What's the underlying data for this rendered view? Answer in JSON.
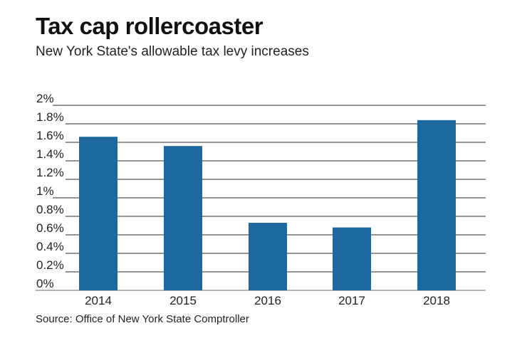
{
  "chart_data": {
    "type": "bar",
    "title": "Tax cap rollercoaster",
    "subtitle": "New York State's allowable tax levy increases",
    "source": "Source: Office of New York State Comptroller",
    "categories": [
      "2014",
      "2015",
      "2016",
      "2017",
      "2018"
    ],
    "values": [
      1.66,
      1.56,
      0.73,
      0.68,
      1.84
    ],
    "unit": "%",
    "yticks": [
      "0%",
      "0.2%",
      "0.4%",
      "0.6%",
      "0.8%",
      "1%",
      "1.2%",
      "1.4%",
      "1.6%",
      "1.8%",
      "2%"
    ],
    "ylim": [
      0,
      2
    ],
    "grid": true,
    "bar_color": "#1c689f"
  }
}
